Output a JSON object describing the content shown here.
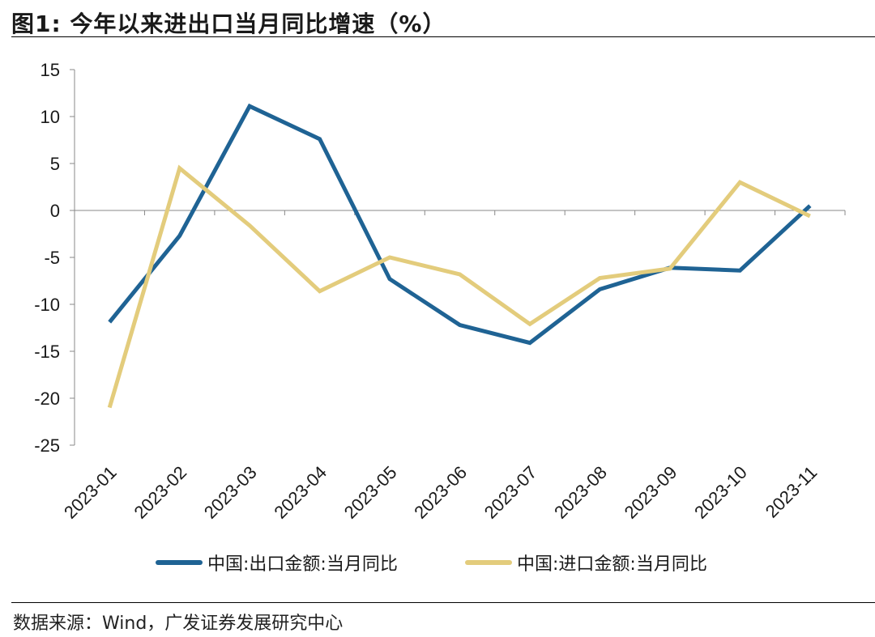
{
  "header": {
    "title": "图1:  今年以来进出口当月同比增速（%）"
  },
  "footer": {
    "source": "数据来源：Wind，广发证券发展研究中心"
  },
  "chart_data": {
    "type": "line",
    "categories": [
      "2023-01",
      "2023-02",
      "2023-03",
      "2023-04",
      "2023-05",
      "2023-06",
      "2023-07",
      "2023-08",
      "2023-09",
      "2023-10",
      "2023-11"
    ],
    "series": [
      {
        "name": "中国:出口金额:当月同比",
        "color": "#1f6394",
        "values": [
          -11.9,
          -2.7,
          11.1,
          7.6,
          -7.3,
          -12.2,
          -14.1,
          -8.4,
          -6.1,
          -6.4,
          0.5
        ]
      },
      {
        "name": "中国:进口金额:当月同比",
        "color": "#e3cc7c",
        "values": [
          -21.0,
          4.5,
          -1.6,
          -8.6,
          -5.0,
          -6.8,
          -12.1,
          -7.2,
          -6.2,
          3.0,
          -0.6
        ]
      }
    ],
    "ylim": [
      -25,
      15
    ],
    "yticks": [
      15,
      10,
      5,
      0,
      -5,
      -10,
      -15,
      -20,
      -25
    ],
    "title": "",
    "xlabel": "",
    "ylabel": ""
  }
}
